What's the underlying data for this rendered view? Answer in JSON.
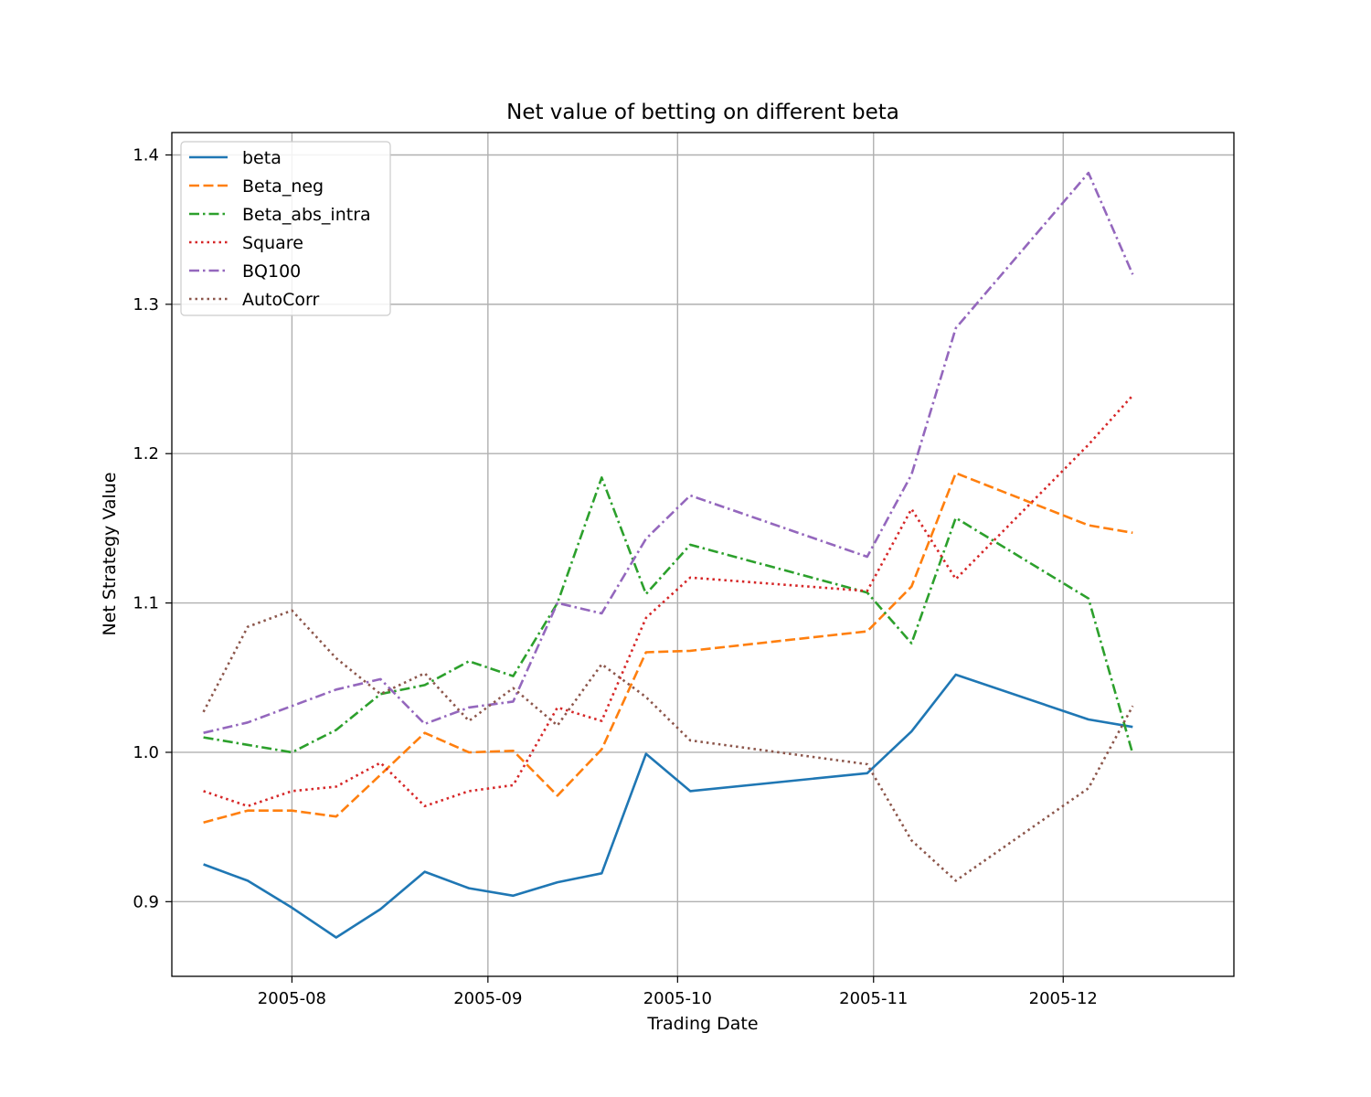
{
  "chart_data": {
    "type": "line",
    "title": "Net value of betting on different beta",
    "xlabel": "Trading Date",
    "ylabel": "Net Strategy Value",
    "x_ticks": [
      "2005-08",
      "2005-09",
      "2005-10",
      "2005-11",
      "2005-12"
    ],
    "y_ticks": [
      0.9,
      1.0,
      1.1,
      1.2,
      1.3,
      1.4
    ],
    "xlim": [
      "2005-07-13",
      "2005-12-28"
    ],
    "ylim": [
      0.85,
      1.415
    ],
    "grid": true,
    "legend_position": "upper-left",
    "x": [
      "2005-07-18",
      "2005-07-25",
      "2005-08-01",
      "2005-08-08",
      "2005-08-15",
      "2005-08-22",
      "2005-08-29",
      "2005-09-05",
      "2005-09-12",
      "2005-09-19",
      "2005-09-26",
      "2005-10-03",
      "2005-10-31",
      "2005-11-07",
      "2005-11-14",
      "2005-12-05",
      "2005-12-12"
    ],
    "series": [
      {
        "name": "beta",
        "color": "#1f77b4",
        "style": "solid",
        "values": [
          0.925,
          0.914,
          0.896,
          0.876,
          0.895,
          0.92,
          0.909,
          0.904,
          0.913,
          0.919,
          0.999,
          0.974,
          0.986,
          1.014,
          1.052,
          1.022,
          1.017
        ]
      },
      {
        "name": "Beta_neg",
        "color": "#ff7f0e",
        "style": "dashed",
        "values": [
          0.953,
          0.961,
          0.961,
          0.957,
          0.985,
          1.013,
          1.0,
          1.001,
          0.971,
          1.002,
          1.067,
          1.068,
          1.081,
          1.111,
          1.187,
          1.152,
          1.147
        ]
      },
      {
        "name": "Beta_abs_intra",
        "color": "#2ca02c",
        "style": "dashdot",
        "values": [
          1.01,
          1.005,
          1.0,
          1.015,
          1.039,
          1.045,
          1.061,
          1.051,
          1.1,
          1.184,
          1.106,
          1.139,
          1.107,
          1.073,
          1.157,
          1.103,
          0.999
        ]
      },
      {
        "name": "Square",
        "color": "#d62728",
        "style": "dotted",
        "values": [
          0.974,
          0.964,
          0.974,
          0.977,
          0.993,
          0.964,
          0.974,
          0.978,
          1.03,
          1.021,
          1.09,
          1.117,
          1.108,
          1.163,
          1.116,
          1.206,
          1.239
        ]
      },
      {
        "name": "BQ100",
        "color": "#9467bd",
        "style": "dashdot",
        "values": [
          1.013,
          1.02,
          1.031,
          1.042,
          1.049,
          1.019,
          1.03,
          1.034,
          1.1,
          1.093,
          1.143,
          1.172,
          1.131,
          1.186,
          1.284,
          1.388,
          1.32
        ]
      },
      {
        "name": "AutoCorr",
        "color": "#8c564b",
        "style": "dotted",
        "values": [
          1.027,
          1.084,
          1.095,
          1.063,
          1.039,
          1.053,
          1.021,
          1.043,
          1.018,
          1.059,
          1.037,
          1.008,
          0.992,
          0.941,
          0.914,
          0.976,
          1.031
        ]
      }
    ]
  }
}
